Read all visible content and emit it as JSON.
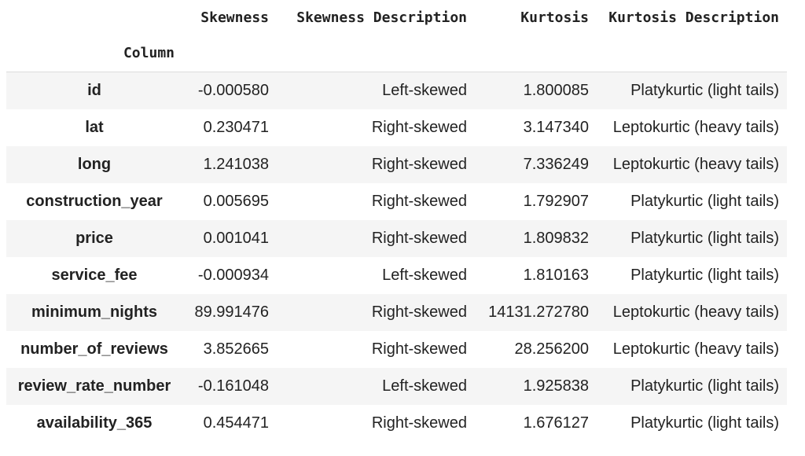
{
  "columns": [
    "Skewness",
    "Skewness Description",
    "Kurtosis",
    "Kurtosis Description"
  ],
  "index_name": "Column",
  "rows": [
    {
      "name": "id",
      "skewness": "-0.000580",
      "skew_desc": "Left-skewed",
      "kurtosis": "1.800085",
      "kurt_desc": "Platykurtic (light tails)"
    },
    {
      "name": "lat",
      "skewness": "0.230471",
      "skew_desc": "Right-skewed",
      "kurtosis": "3.147340",
      "kurt_desc": "Leptokurtic (heavy tails)"
    },
    {
      "name": "long",
      "skewness": "1.241038",
      "skew_desc": "Right-skewed",
      "kurtosis": "7.336249",
      "kurt_desc": "Leptokurtic (heavy tails)"
    },
    {
      "name": "construction_year",
      "skewness": "0.005695",
      "skew_desc": "Right-skewed",
      "kurtosis": "1.792907",
      "kurt_desc": "Platykurtic (light tails)"
    },
    {
      "name": "price",
      "skewness": "0.001041",
      "skew_desc": "Right-skewed",
      "kurtosis": "1.809832",
      "kurt_desc": "Platykurtic (light tails)"
    },
    {
      "name": "service_fee",
      "skewness": "-0.000934",
      "skew_desc": "Left-skewed",
      "kurtosis": "1.810163",
      "kurt_desc": "Platykurtic (light tails)"
    },
    {
      "name": "minimum_nights",
      "skewness": "89.991476",
      "skew_desc": "Right-skewed",
      "kurtosis": "14131.272780",
      "kurt_desc": "Leptokurtic (heavy tails)"
    },
    {
      "name": "number_of_reviews",
      "skewness": "3.852665",
      "skew_desc": "Right-skewed",
      "kurtosis": "28.256200",
      "kurt_desc": "Leptokurtic (heavy tails)"
    },
    {
      "name": "review_rate_number",
      "skewness": "-0.161048",
      "skew_desc": "Left-skewed",
      "kurtosis": "1.925838",
      "kurt_desc": "Platykurtic (light tails)"
    },
    {
      "name": "availability_365",
      "skewness": "0.454471",
      "skew_desc": "Right-skewed",
      "kurtosis": "1.676127",
      "kurt_desc": "Platykurtic (light tails)"
    }
  ]
}
